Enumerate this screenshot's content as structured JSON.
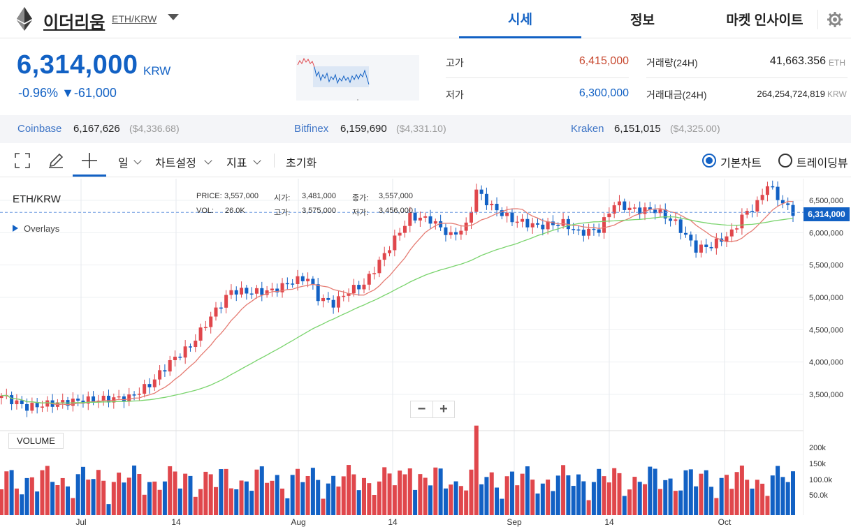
{
  "header": {
    "coin_name": "이더리움",
    "pair": "ETH/KRW",
    "tabs": [
      {
        "label": "시세",
        "active": true
      },
      {
        "label": "정보",
        "active": false
      },
      {
        "label": "마켓 인사이트",
        "active": false
      }
    ]
  },
  "summary": {
    "price": "6,314,000",
    "unit": "KRW",
    "change_pct": "-0.96%",
    "change_arrow": "▼",
    "change_abs": "-61,000",
    "high_label": "고가",
    "high_value": "6,415,000",
    "low_label": "저가",
    "low_value": "6,300,000",
    "volume_label": "거래량(24H)",
    "volume_value": "41,663.356",
    "volume_unit": "ETH",
    "amount_label": "거래대금(24H)",
    "amount_value": "264,254,724,819",
    "amount_unit": "KRW"
  },
  "exchanges": [
    {
      "name": "Coinbase",
      "price": "6,167,626",
      "usd": "($4,336.68)"
    },
    {
      "name": "Bitfinex",
      "price": "6,159,690",
      "usd": "($4,331.10)"
    },
    {
      "name": "Kraken",
      "price": "6,151,015",
      "usd": "($4,325.00)"
    }
  ],
  "toolbar": {
    "interval": "일",
    "chart_settings": "차트설정",
    "indicators": "지표",
    "reset": "초기화",
    "basic_chart": "기본차트",
    "tradingview": "트레이딩뷰"
  },
  "chart": {
    "pair_label": "ETH/KRW",
    "overlays_label": "Overlays",
    "legend": {
      "price_label": "PRICE:",
      "price": "3,557,000",
      "open_label": "시가:",
      "open": "3,481,000",
      "close_label": "종가:",
      "close": "3,557,000",
      "vol_label": "VOL:",
      "vol": "26.0K",
      "high_label": "고가:",
      "high": "3,575,000",
      "low_label": "저가:",
      "low": "3,456,000"
    },
    "current_price_tag": "6,314,000",
    "zoom_out": "−",
    "zoom_in": "+",
    "volume_label": "VOLUME"
  },
  "chart_data": {
    "type": "candlestick",
    "y_ticks": [
      "6,500,000",
      "6,000,000",
      "5,500,000",
      "5,000,000",
      "4,500,000",
      "4,000,000",
      "3,500,000"
    ],
    "volume_ticks": [
      "200k",
      "150k",
      "100.0k",
      "50.0k"
    ],
    "x_ticks": [
      "Jul",
      "14",
      "Aug",
      "14",
      "Sep",
      "14",
      "Oct"
    ],
    "ylim": [
      3000000,
      6800000
    ],
    "colors": {
      "up": "#e0474c",
      "down": "#1261c4",
      "ma_short": "#e57b72",
      "ma_long": "#7ad46d"
    }
  }
}
